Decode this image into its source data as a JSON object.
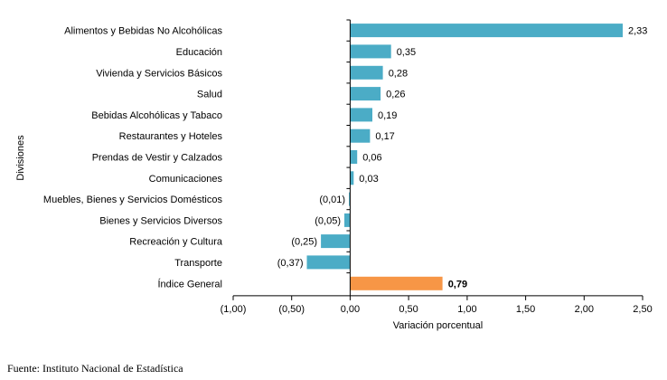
{
  "chart_data": {
    "type": "bar",
    "orientation": "horizontal",
    "categories": [
      "Alimentos y Bebidas No Alcohólicas",
      "Educación",
      "Vivienda y Servicios Básicos",
      "Salud",
      "Bebidas Alcohólicas y Tabaco",
      "Restaurantes  y Hoteles",
      "Prendas de Vestir y Calzados",
      "Comunicaciones",
      "Muebles, Bienes y Servicios Domésticos",
      "Bienes y Servicios Diversos",
      "Recreación y Cultura",
      "Transporte",
      "Índice General"
    ],
    "values": [
      2.33,
      0.35,
      0.28,
      0.26,
      0.19,
      0.17,
      0.06,
      0.03,
      -0.01,
      -0.05,
      -0.25,
      -0.37,
      0.79
    ],
    "data_labels": [
      "2,33",
      "0,35",
      "0,28",
      "0,26",
      "0,19",
      "0,17",
      "0,06",
      "0,03",
      "(0,01)",
      "(0,05)",
      "(0,25)",
      "(0,37)",
      "0,79"
    ],
    "bar_colors": [
      "#4bacc6",
      "#4bacc6",
      "#4bacc6",
      "#4bacc6",
      "#4bacc6",
      "#4bacc6",
      "#4bacc6",
      "#4bacc6",
      "#4bacc6",
      "#4bacc6",
      "#4bacc6",
      "#4bacc6",
      "#f79646"
    ],
    "xlabel": "Variación porcentual",
    "ylabel": "Divisiones",
    "xlim": [
      -1.0,
      2.5
    ],
    "xticks": [
      -1.0,
      -0.5,
      0.0,
      0.5,
      1.0,
      1.5,
      2.0,
      2.5
    ],
    "xtick_labels": [
      "(1,00)",
      "(0,50)",
      "0,00",
      "0,50",
      "1,00",
      "1,50",
      "2,00",
      "2,50"
    ],
    "grid": false,
    "legend": "none"
  },
  "source": "Fuente: Instituto Nacional de Estadística"
}
